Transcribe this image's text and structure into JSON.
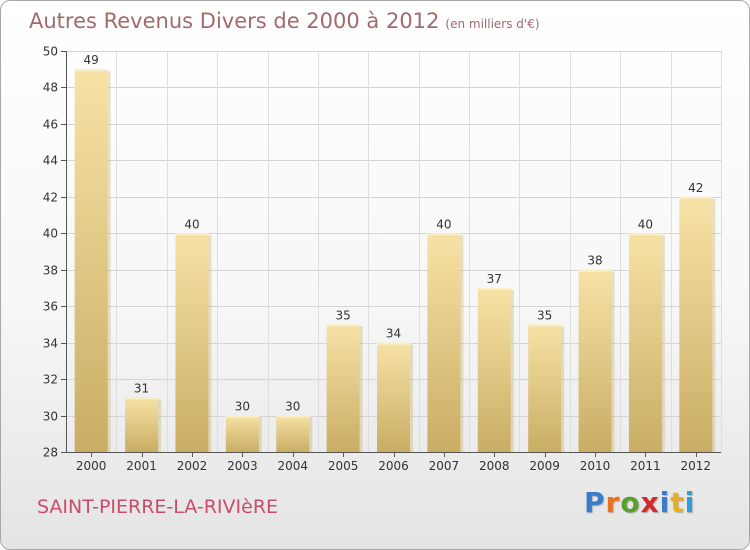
{
  "header": {
    "title": "Autres Revenus Divers de 2000 à 2012",
    "subtitle": "(en milliers d'€)"
  },
  "footer": {
    "city": "SAINT-PIERRE-LA-RIVIèRE",
    "logo_letters": [
      "P",
      "r",
      "o",
      "x",
      "i",
      "t",
      "i"
    ],
    "logo_colors": [
      "#3a7cc9",
      "#e8731f",
      "#5aa02c",
      "#d22a2a",
      "#3a7cc9",
      "#e8b020",
      "#2c9fd9"
    ]
  },
  "chart_data": {
    "type": "bar",
    "categories": [
      "2000",
      "2001",
      "2002",
      "2003",
      "2004",
      "2005",
      "2006",
      "2007",
      "2008",
      "2009",
      "2010",
      "2011",
      "2012"
    ],
    "values": [
      49,
      31,
      40,
      30,
      30,
      35,
      34,
      40,
      37,
      35,
      38,
      40,
      42
    ],
    "title": "Autres Revenus Divers de 2000 à 2012",
    "xlabel": "",
    "ylabel": "",
    "ylim": [
      28,
      50
    ],
    "yticks": [
      28,
      30,
      32,
      34,
      36,
      38,
      40,
      42,
      44,
      46,
      48,
      50
    ],
    "grid": true,
    "bar_color": "#f2d68d",
    "bar_shadow_color": "#c3ab6a"
  }
}
